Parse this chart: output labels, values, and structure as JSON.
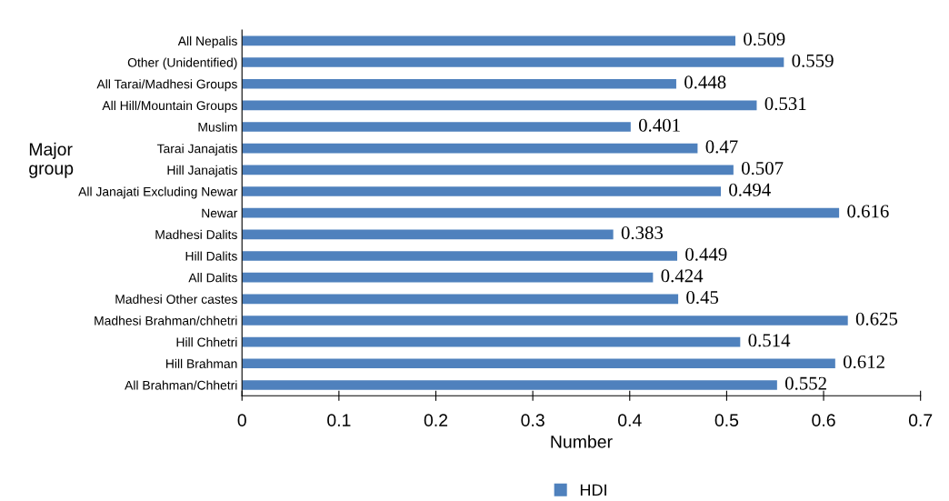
{
  "chart_data": {
    "type": "bar",
    "orientation": "horizontal",
    "xlabel": "Number",
    "ylabel": "Major group",
    "categories": [
      "All Nepalis",
      "Other (Unidentified)",
      "All Tarai/Madhesi Groups",
      "All Hill/Mountain Groups",
      "Muslim",
      "Tarai Janajatis",
      "Hill Janajatis",
      "All Janajati Excluding Newar",
      "Newar",
      "Madhesi Dalits",
      "Hill Dalits",
      "All Dalits",
      "Madhesi Other castes",
      "Madhesi Brahman/chhetri",
      "Hill Chhetri",
      "Hill Brahman",
      "All Brahman/Chhetri"
    ],
    "series": [
      {
        "name": "HDI",
        "color": "#4f81bd",
        "values": [
          0.509,
          0.559,
          0.448,
          0.531,
          0.401,
          0.47,
          0.507,
          0.494,
          0.616,
          0.383,
          0.449,
          0.424,
          0.45,
          0.625,
          0.514,
          0.612,
          0.552
        ]
      }
    ],
    "xlim": [
      0,
      0.7
    ],
    "xticks": [
      0,
      0.1,
      0.2,
      0.3,
      0.4,
      0.5,
      0.6,
      0.7
    ],
    "data_labels": true,
    "legend": "bottom",
    "grid": false
  }
}
